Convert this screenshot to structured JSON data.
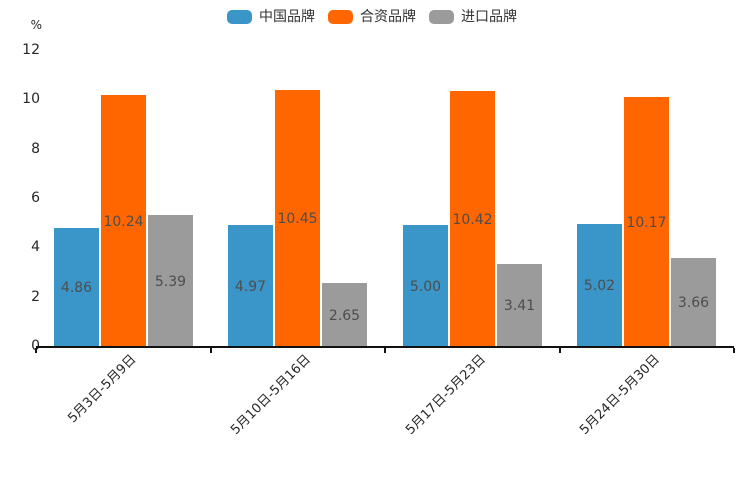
{
  "chart_data": {
    "type": "bar",
    "title": "",
    "unit_label": "%",
    "categories": [
      "5月3日-5月9日",
      "5月10日-5月16日",
      "5月17日-5月23日",
      "5月24日-5月30日"
    ],
    "series": [
      {
        "name": "中国品牌",
        "slug": "chinese-brand",
        "color": "#3A96C9",
        "values": [
          4.86,
          4.97,
          5.0,
          5.02
        ]
      },
      {
        "name": "合资品牌",
        "slug": "joint-venture-brand",
        "color": "#FF6600",
        "values": [
          10.24,
          10.45,
          10.42,
          10.17
        ]
      },
      {
        "name": "进口品牌",
        "slug": "imported-brand",
        "color": "#9B9B9B",
        "values": [
          5.39,
          2.65,
          3.41,
          3.66
        ]
      }
    ],
    "ylim": [
      0,
      12
    ],
    "yticks": [
      0,
      2,
      4,
      6,
      8,
      10,
      12
    ],
    "grid": false,
    "legend_position": "top",
    "value_label_position": "inside-center",
    "value_label_decimals": 2,
    "x_label_rotation_deg": -45,
    "colors": {
      "background": "#ffffff",
      "axis": "#111111",
      "tick_text": "#262626",
      "value_label_text": "#4d4d4d",
      "legend_text": "#333333"
    }
  }
}
